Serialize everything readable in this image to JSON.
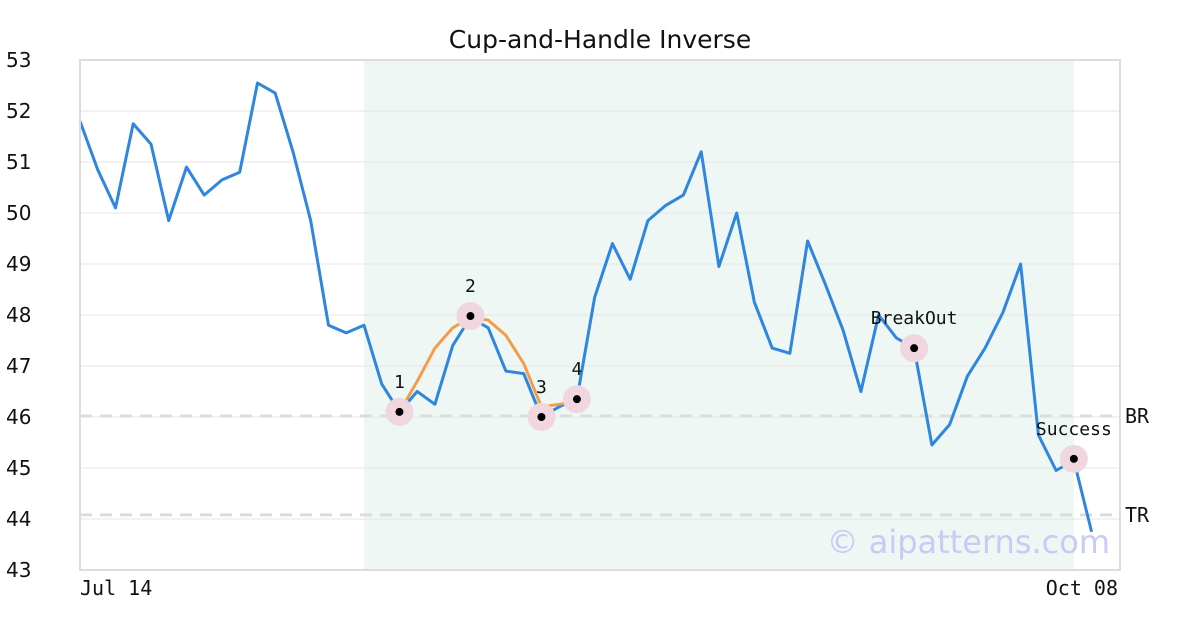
{
  "chart_data": {
    "type": "line",
    "title": "Cup-and-Handle Inverse",
    "xlabel": "",
    "ylabel": "",
    "ylim": [
      43,
      53
    ],
    "yticks": [
      43,
      44,
      45,
      46,
      47,
      48,
      49,
      50,
      51,
      52,
      53
    ],
    "x_tick_labels": [
      "Jul 14",
      "Oct 08"
    ],
    "grid": true,
    "legend": "none",
    "pattern_region": {
      "start_index": 16,
      "end_index": 56
    },
    "series": [
      {
        "name": "",
        "color": "#2e86de",
        "values": [
          51.8,
          50.85,
          50.1,
          51.75,
          51.35,
          49.85,
          50.9,
          50.35,
          50.65,
          50.8,
          52.55,
          52.35,
          51.2,
          49.85,
          47.8,
          47.65,
          47.8,
          46.65,
          46.1,
          46.5,
          46.25,
          47.4,
          47.95,
          47.75,
          46.9,
          46.85,
          46.0,
          46.2,
          46.35,
          48.35,
          49.4,
          48.7,
          49.85,
          50.15,
          50.35,
          51.2,
          48.95,
          50.0,
          48.25,
          47.35,
          47.25,
          49.45,
          48.6,
          47.7,
          46.5,
          48.0,
          47.55,
          47.35,
          45.45,
          45.85,
          46.8,
          47.35,
          48.05,
          49.0,
          45.65,
          44.95,
          45.15,
          43.75
        ]
      },
      {
        "name": "",
        "color": "#f39c4a",
        "start_index": 18,
        "values": [
          46.1,
          46.7,
          47.35,
          47.75,
          47.95,
          47.9,
          47.6,
          47.05,
          46.2,
          46.25,
          46.3
        ]
      }
    ],
    "levels": [
      {
        "label": "BR",
        "value": 46.02,
        "color": "#dcdcdc"
      },
      {
        "label": "TR",
        "value": 44.08,
        "color": "#dcdcdc"
      }
    ],
    "annotations": [
      {
        "label": "1",
        "index": 18,
        "value": 46.1
      },
      {
        "label": "2",
        "index": 22,
        "value": 47.98
      },
      {
        "label": "3",
        "index": 26,
        "value": 46.0
      },
      {
        "label": "4",
        "index": 28,
        "value": 46.35
      },
      {
        "label": "BreakOut",
        "index": 47,
        "value": 47.35
      },
      {
        "label": "Success",
        "index": 56,
        "value": 45.18
      }
    ],
    "colors": {
      "axis": "#dcdcdc",
      "grid": "#e6e6e6",
      "region_fill": "#eef7f3",
      "marker_halo": "#f0d6de",
      "marker_dot": "#000000"
    }
  },
  "watermark": "© aipatterns.com"
}
